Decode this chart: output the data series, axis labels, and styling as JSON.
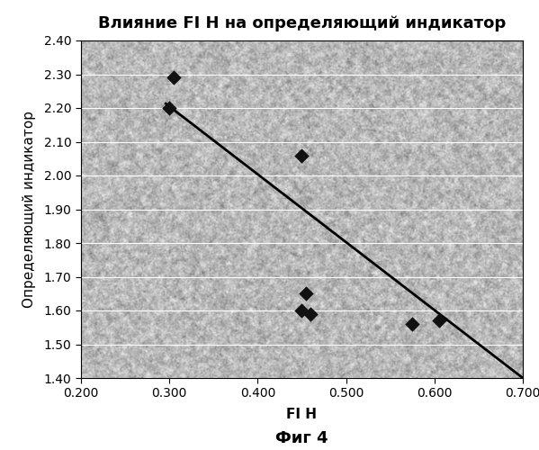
{
  "title": "Влияние FI H на определяющий индикатор",
  "xlabel": "FI H",
  "ylabel": "Определяющий индикатор",
  "caption": "Фиг 4",
  "scatter_x": [
    0.3,
    0.305,
    0.45,
    0.45,
    0.455,
    0.46,
    0.575,
    0.605
  ],
  "scatter_y": [
    2.2,
    2.29,
    2.06,
    1.6,
    1.65,
    1.59,
    1.56,
    1.57
  ],
  "trendline_x": [
    0.295,
    0.7
  ],
  "trendline_y": [
    2.215,
    1.4
  ],
  "xlim": [
    0.2,
    0.7
  ],
  "ylim": [
    1.4,
    2.4
  ],
  "xticks": [
    0.2,
    0.3,
    0.4,
    0.5,
    0.6,
    0.7
  ],
  "yticks": [
    1.4,
    1.5,
    1.6,
    1.7,
    1.8,
    1.9,
    2.0,
    2.1,
    2.2,
    2.3,
    2.4
  ],
  "marker_color": "#111111",
  "line_color": "#000000",
  "title_fontsize": 13,
  "label_fontsize": 11,
  "caption_fontsize": 13,
  "tick_fontsize": 10
}
